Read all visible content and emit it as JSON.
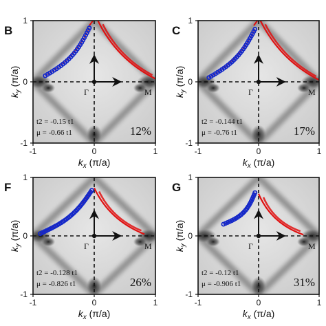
{
  "panels": [
    {
      "letter": "B",
      "t2": "t2 = -0.15 t1",
      "mu": "μ = -0.66 t1",
      "percent": "12%",
      "x_ticks": [
        "-1",
        "0",
        "1"
      ],
      "y_ticks": [
        "1",
        "0",
        "-1"
      ],
      "show_xlabel": true
    },
    {
      "letter": "C",
      "t2": "t2 = -0.144 t1",
      "mu": "μ = -0.76 t1",
      "percent": "17%",
      "x_ticks": [
        "-1",
        "0",
        "1"
      ],
      "y_ticks": [
        "1",
        "0",
        "-1"
      ],
      "show_xlabel": true
    },
    {
      "letter": "F",
      "t2": "t2 = -0.128 t1",
      "mu": "μ = -0.826 t1",
      "percent": "26%",
      "x_ticks": [
        "-1",
        "0",
        "1"
      ],
      "y_ticks": [
        "1",
        "0",
        "-1"
      ],
      "show_xlabel": true
    },
    {
      "letter": "G",
      "t2": "t2 = -0.12 t1",
      "mu": "μ = -0.906 t1",
      "percent": "31%",
      "x_ticks": [
        "-1",
        "0",
        "1"
      ],
      "y_ticks": [
        "1",
        "0",
        "-1"
      ],
      "show_xlabel": true
    }
  ],
  "labels": {
    "gamma": "Γ",
    "m_point": "M",
    "ky": "k",
    "ky_sub": "y",
    "ky_unit": " (π/a)",
    "kx": "k",
    "kx_sub": "x",
    "kx_unit": " (π/a)"
  },
  "colors": {
    "data_points": "#1428c8",
    "fit_curve": "#e01010",
    "background_map": "#d8d8d8"
  }
}
